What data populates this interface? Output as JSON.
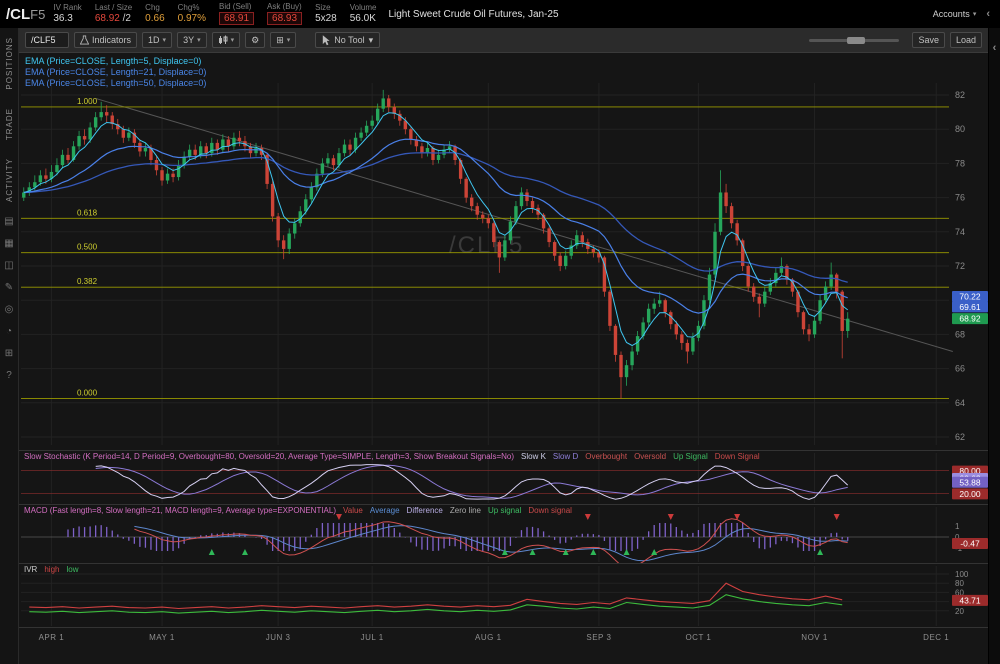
{
  "icons": {
    "caret": "▾",
    "chevron_left": "‹",
    "gear": "⚙",
    "grid": "⊞"
  },
  "header": {
    "symbol_main": "/CL",
    "symbol_suffix": "F5",
    "stats": [
      {
        "label": "IV Rank",
        "value": "36.3",
        "suffix": "",
        "cls": "white",
        "boxed": false
      },
      {
        "label": "Last / Size",
        "value": "68.92",
        "suffix": " /2",
        "cls": "red",
        "boxed": false
      },
      {
        "label": "Chg",
        "value": "0.66",
        "suffix": "",
        "cls": "orange",
        "boxed": false
      },
      {
        "label": "Chg%",
        "value": "0.97%",
        "suffix": "",
        "cls": "orange",
        "boxed": false
      },
      {
        "label": "Bid (Sell)",
        "value": "68.91",
        "suffix": "",
        "cls": "red",
        "boxed": true
      },
      {
        "label": "Ask (Buy)",
        "value": "68.93",
        "suffix": "",
        "cls": "red",
        "boxed": true
      },
      {
        "label": "Size",
        "value": "5x28",
        "suffix": "",
        "cls": "white",
        "boxed": false
      },
      {
        "label": "Volume",
        "value": "56.0K",
        "suffix": "",
        "cls": "white",
        "boxed": false
      }
    ],
    "description": "Light Sweet Crude Oil Futures, Jan-25",
    "accounts_label": "Accounts"
  },
  "sidebar": {
    "tabs": [
      "POSITIONS",
      "TRADE",
      "ACTIVITY"
    ],
    "icons": [
      {
        "name": "monitor-icon",
        "glyph": "▤"
      },
      {
        "name": "calendar-icon",
        "glyph": "▦"
      },
      {
        "name": "notes-icon",
        "glyph": "◫"
      },
      {
        "name": "edit-icon",
        "glyph": "✎"
      },
      {
        "name": "target-icon",
        "glyph": "◎"
      },
      {
        "name": "clock-icon",
        "glyph": "◔"
      },
      {
        "name": "apps-icon",
        "glyph": "⊞"
      },
      {
        "name": "help-icon",
        "glyph": "?"
      }
    ]
  },
  "toolbar": {
    "symbol_input": "/CLF5",
    "indicators_label": "Indicators",
    "aggregation": "1D",
    "range": "3Y",
    "tool_label": "No Tool",
    "save_label": "Save",
    "load_label": "Load"
  },
  "chart": {
    "watermark": "/CLF5",
    "ema_labels": [
      {
        "text": "EMA (Price=CLOSE, Length=5, Displace=0)",
        "color": "#3fc6f0"
      },
      {
        "text": "EMA (Price=CLOSE, Length=21, Displace=0)",
        "color": "#4a86e8"
      },
      {
        "text": "EMA (Price=CLOSE, Length=50, Displace=0)",
        "color": "#4a86e8"
      }
    ],
    "y_ticks": [
      82,
      80,
      78,
      76,
      74,
      72,
      70,
      68,
      66,
      64,
      62
    ],
    "fib_levels": [
      {
        "label": "1.000",
        "price": 81.3
      },
      {
        "label": "0.618",
        "price": 74.79
      },
      {
        "label": "0.500",
        "price": 72.78
      },
      {
        "label": "0.382",
        "price": 70.76
      },
      {
        "label": "0.000",
        "price": 64.25
      }
    ],
    "price_badges": [
      {
        "value": "70.22",
        "price": 70.22,
        "bg": "#3a5fc8"
      },
      {
        "value": "69.61",
        "price": 69.61,
        "bg": "#3a5fc8"
      },
      {
        "value": "68.92",
        "price": 68.92,
        "bg": "#1f9a50"
      }
    ],
    "trendline": {
      "i1": 13,
      "p1": 81.8,
      "i2": 168,
      "p2": 67.0
    },
    "colors": {
      "up": "#26a65b",
      "down": "#cc4437",
      "ema5": "#3fc6f0",
      "ema21": "#4a80e8",
      "ema50": "#3558b8"
    },
    "candles": [
      [
        76.0,
        76.6,
        75.8,
        76.3
      ],
      [
        76.3,
        76.9,
        76.1,
        76.6
      ],
      [
        76.6,
        77.3,
        76.4,
        76.9
      ],
      [
        76.9,
        77.6,
        76.7,
        77.3
      ],
      [
        77.3,
        77.7,
        76.8,
        77.1
      ],
      [
        77.1,
        77.9,
        76.9,
        77.5
      ],
      [
        77.5,
        78.3,
        77.3,
        77.9
      ],
      [
        77.9,
        78.8,
        77.7,
        78.5
      ],
      [
        78.5,
        78.9,
        78.0,
        78.2
      ],
      [
        78.2,
        79.3,
        78.1,
        79.0
      ],
      [
        79.0,
        79.9,
        78.8,
        79.6
      ],
      [
        79.6,
        80.0,
        79.1,
        79.4
      ],
      [
        79.4,
        80.4,
        79.2,
        80.1
      ],
      [
        80.1,
        81.0,
        79.9,
        80.7
      ],
      [
        80.7,
        81.6,
        80.5,
        81.0
      ],
      [
        81.0,
        81.4,
        80.4,
        80.8
      ],
      [
        80.8,
        81.0,
        80.0,
        80.3
      ],
      [
        80.3,
        80.6,
        79.7,
        80.0
      ],
      [
        80.0,
        80.2,
        79.2,
        79.5
      ],
      [
        79.5,
        80.1,
        79.3,
        79.8
      ],
      [
        79.8,
        80.0,
        78.9,
        79.2
      ],
      [
        79.2,
        79.4,
        78.4,
        78.7
      ],
      [
        78.7,
        79.2,
        78.4,
        78.9
      ],
      [
        78.9,
        79.1,
        77.9,
        78.2
      ],
      [
        78.2,
        78.4,
        77.3,
        77.6
      ],
      [
        77.6,
        77.8,
        76.7,
        77.0
      ],
      [
        77.0,
        77.7,
        76.8,
        77.4
      ],
      [
        77.4,
        77.7,
        76.9,
        77.2
      ],
      [
        77.2,
        78.2,
        77.0,
        77.9
      ],
      [
        77.9,
        78.7,
        77.7,
        78.4
      ],
      [
        78.4,
        79.1,
        78.2,
        78.8
      ],
      [
        78.8,
        79.1,
        78.2,
        78.5
      ],
      [
        78.5,
        79.3,
        78.3,
        79.0
      ],
      [
        79.0,
        79.2,
        78.3,
        78.6
      ],
      [
        78.6,
        79.5,
        78.4,
        79.2
      ],
      [
        79.2,
        79.4,
        78.5,
        78.8
      ],
      [
        78.8,
        79.7,
        78.6,
        79.4
      ],
      [
        79.4,
        79.6,
        78.7,
        79.0
      ],
      [
        79.0,
        79.8,
        78.8,
        79.5
      ],
      [
        79.5,
        79.9,
        79.0,
        79.3
      ],
      [
        79.3,
        79.6,
        78.7,
        79.0
      ],
      [
        79.0,
        79.2,
        78.3,
        78.6
      ],
      [
        78.6,
        79.2,
        78.4,
        78.9
      ],
      [
        78.9,
        79.1,
        78.2,
        78.5
      ],
      [
        78.5,
        78.6,
        76.5,
        76.8
      ],
      [
        76.8,
        77.0,
        74.6,
        74.9
      ],
      [
        74.9,
        75.1,
        73.1,
        73.5
      ],
      [
        73.5,
        73.8,
        72.4,
        73.0
      ],
      [
        73.0,
        74.2,
        72.7,
        73.9
      ],
      [
        73.9,
        74.8,
        73.6,
        74.5
      ],
      [
        74.5,
        75.5,
        74.3,
        75.2
      ],
      [
        75.2,
        76.2,
        75.0,
        75.9
      ],
      [
        75.9,
        76.9,
        75.7,
        76.6
      ],
      [
        76.6,
        77.7,
        76.4,
        77.4
      ],
      [
        77.4,
        78.3,
        77.2,
        78.0
      ],
      [
        78.0,
        78.6,
        77.8,
        78.3
      ],
      [
        78.3,
        78.5,
        77.6,
        77.9
      ],
      [
        77.9,
        78.9,
        77.7,
        78.6
      ],
      [
        78.6,
        79.4,
        78.4,
        79.1
      ],
      [
        79.1,
        79.4,
        78.5,
        78.8
      ],
      [
        78.8,
        79.8,
        78.6,
        79.5
      ],
      [
        79.5,
        80.1,
        79.3,
        79.8
      ],
      [
        79.8,
        80.5,
        79.6,
        80.2
      ],
      [
        80.2,
        80.8,
        80.0,
        80.5
      ],
      [
        80.5,
        81.5,
        80.3,
        81.2
      ],
      [
        81.2,
        82.3,
        81.0,
        81.8
      ],
      [
        81.8,
        82.0,
        81.0,
        81.3
      ],
      [
        81.3,
        81.5,
        80.6,
        80.9
      ],
      [
        80.9,
        81.1,
        80.2,
        80.5
      ],
      [
        80.5,
        80.7,
        79.7,
        80.0
      ],
      [
        80.0,
        80.1,
        79.1,
        79.4
      ],
      [
        79.4,
        79.6,
        78.7,
        79.0
      ],
      [
        79.0,
        79.2,
        78.3,
        78.6
      ],
      [
        78.6,
        79.2,
        78.4,
        78.9
      ],
      [
        78.9,
        79.0,
        77.9,
        78.2
      ],
      [
        78.2,
        78.8,
        78.0,
        78.5
      ],
      [
        78.5,
        79.1,
        78.3,
        78.8
      ],
      [
        78.8,
        79.3,
        78.6,
        79.0
      ],
      [
        79.0,
        79.1,
        77.9,
        78.2
      ],
      [
        78.2,
        78.3,
        76.8,
        77.1
      ],
      [
        77.1,
        77.2,
        75.7,
        76.0
      ],
      [
        76.0,
        76.2,
        75.2,
        75.5
      ],
      [
        75.5,
        75.7,
        74.7,
        75.0
      ],
      [
        75.0,
        75.2,
        74.5,
        74.8
      ],
      [
        74.8,
        75.0,
        74.2,
        74.5
      ],
      [
        74.5,
        74.6,
        73.1,
        73.4
      ],
      [
        73.4,
        73.5,
        71.6,
        72.5
      ],
      [
        72.5,
        73.8,
        72.3,
        73.5
      ],
      [
        73.5,
        74.9,
        73.3,
        74.6
      ],
      [
        74.6,
        75.8,
        74.4,
        75.5
      ],
      [
        75.5,
        76.6,
        75.3,
        76.3
      ],
      [
        76.3,
        76.5,
        75.5,
        75.8
      ],
      [
        75.8,
        76.0,
        75.1,
        75.4
      ],
      [
        75.4,
        75.6,
        74.7,
        75.0
      ],
      [
        75.0,
        75.1,
        73.9,
        74.2
      ],
      [
        74.2,
        74.3,
        73.1,
        73.4
      ],
      [
        73.4,
        73.5,
        72.3,
        72.6
      ],
      [
        72.6,
        72.8,
        71.7,
        72.0
      ],
      [
        72.0,
        72.9,
        71.8,
        72.6
      ],
      [
        72.6,
        73.5,
        72.4,
        73.2
      ],
      [
        73.2,
        74.1,
        73.0,
        73.8
      ],
      [
        73.8,
        74.0,
        73.1,
        73.4
      ],
      [
        73.4,
        73.6,
        72.7,
        73.0
      ],
      [
        73.0,
        73.2,
        72.5,
        72.8
      ],
      [
        72.8,
        73.0,
        72.2,
        72.5
      ],
      [
        72.5,
        72.6,
        70.2,
        70.5
      ],
      [
        70.5,
        70.6,
        68.2,
        68.5
      ],
      [
        68.5,
        68.6,
        66.4,
        66.8
      ],
      [
        66.8,
        67.0,
        64.25,
        65.5
      ],
      [
        65.5,
        66.5,
        65.0,
        66.2
      ],
      [
        66.2,
        67.3,
        65.9,
        67.0
      ],
      [
        67.0,
        68.2,
        66.8,
        67.9
      ],
      [
        67.9,
        69.0,
        67.7,
        68.7
      ],
      [
        68.7,
        69.8,
        68.5,
        69.5
      ],
      [
        69.5,
        70.1,
        69.2,
        69.8
      ],
      [
        69.8,
        70.5,
        69.6,
        70.0
      ],
      [
        70.0,
        70.1,
        69.0,
        69.3
      ],
      [
        69.3,
        69.4,
        68.3,
        68.6
      ],
      [
        68.6,
        68.8,
        67.7,
        68.0
      ],
      [
        68.0,
        68.2,
        67.1,
        67.5
      ],
      [
        67.5,
        67.7,
        66.3,
        67.0
      ],
      [
        67.0,
        68.1,
        66.8,
        67.8
      ],
      [
        67.8,
        68.8,
        67.6,
        68.5
      ],
      [
        68.5,
        70.3,
        68.3,
        70.0
      ],
      [
        70.0,
        71.9,
        69.8,
        71.5
      ],
      [
        71.5,
        74.5,
        71.3,
        74.0
      ],
      [
        74.0,
        77.6,
        73.8,
        76.3
      ],
      [
        76.3,
        76.8,
        75.1,
        75.5
      ],
      [
        75.5,
        75.7,
        74.2,
        74.5
      ],
      [
        74.5,
        74.7,
        73.2,
        73.5
      ],
      [
        73.5,
        73.6,
        71.7,
        72.0
      ],
      [
        72.0,
        72.1,
        70.5,
        70.8
      ],
      [
        70.8,
        71.0,
        69.9,
        70.2
      ],
      [
        70.2,
        70.4,
        69.0,
        69.8
      ],
      [
        69.8,
        70.8,
        69.6,
        70.5
      ],
      [
        70.5,
        71.3,
        70.3,
        71.0
      ],
      [
        71.0,
        71.9,
        70.8,
        71.6
      ],
      [
        71.6,
        72.5,
        71.4,
        72.0
      ],
      [
        72.0,
        72.1,
        70.9,
        71.2
      ],
      [
        71.2,
        71.3,
        70.2,
        70.5
      ],
      [
        70.5,
        70.6,
        69.0,
        69.3
      ],
      [
        69.3,
        69.4,
        68.0,
        68.3
      ],
      [
        68.3,
        68.6,
        67.6,
        68.0
      ],
      [
        68.0,
        69.1,
        67.8,
        68.8
      ],
      [
        68.8,
        70.3,
        68.6,
        70.0
      ],
      [
        70.0,
        71.1,
        69.8,
        70.8
      ],
      [
        70.8,
        72.2,
        70.6,
        71.5
      ],
      [
        71.5,
        71.6,
        70.1,
        70.5
      ],
      [
        70.5,
        70.6,
        66.6,
        68.2
      ],
      [
        68.2,
        69.3,
        67.8,
        68.92
      ]
    ]
  },
  "stoch": {
    "params": {
      "text": "Slow Stochastic (K Period=14, D Period=9, Overbought=80, Oversold=20, Average Type=SIMPLE, Length=3, Show Breakout Signals=No)",
      "color": "#d36ec1"
    },
    "items": [
      {
        "text": "Slow K",
        "color": "#cfcfe8"
      },
      {
        "text": "Slow D",
        "color": "#8f7fd8"
      },
      {
        "text": "Overbought",
        "color": "#c95252"
      },
      {
        "text": "Oversold",
        "color": "#c95252"
      },
      {
        "text": "Up Signal",
        "color": "#3dbb62"
      },
      {
        "text": "Down Signal",
        "color": "#c94a4a"
      }
    ],
    "overbought": 80,
    "oversold": 20,
    "badges": [
      {
        "value": "80.00",
        "price": 80,
        "bg": "#9c2b2b"
      },
      {
        "value": "60.62",
        "price": 60.62,
        "bg": "#9b8ce0"
      },
      {
        "value": "53.88",
        "price": 50.5,
        "bg": "#7361c4"
      },
      {
        "value": "20.00",
        "price": 20,
        "bg": "#9c2b2b"
      }
    ]
  },
  "macd": {
    "params": {
      "text": "MACD (Fast length=8, Slow length=21, MACD length=9, Average type=EXPONENTIAL)",
      "color": "#d36ec1"
    },
    "items": [
      {
        "text": "Value",
        "color": "#c94a4a"
      },
      {
        "text": "Average",
        "color": "#5b8fd6"
      },
      {
        "text": "Difference",
        "color": "#b9aee4"
      },
      {
        "text": "Zero line",
        "color": "#aaaaaa"
      },
      {
        "text": "Up signal",
        "color": "#3dbb62"
      },
      {
        "text": "Down signal",
        "color": "#c94a4a"
      }
    ],
    "y_ticks": [
      1,
      0,
      -1
    ],
    "badge": {
      "value": "-0.47",
      "bg": "#9c2b2b"
    },
    "up_signals": [
      34,
      40,
      87,
      92,
      98,
      103,
      109,
      114,
      144
    ],
    "down_signals": [
      57,
      102,
      117,
      129,
      147
    ]
  },
  "ivr": {
    "items": [
      {
        "text": "IVR",
        "color": "#cccccc"
      },
      {
        "text": "high",
        "color": "#cc4444"
      },
      {
        "text": "low",
        "color": "#3dbb62"
      }
    ],
    "y_ticks": [
      100,
      80,
      60,
      40,
      20
    ],
    "badge": {
      "value": "43.71",
      "price": 43.71,
      "bg": "#9c2b2b"
    },
    "high": [
      28,
      27,
      29,
      26,
      28,
      30,
      27,
      26,
      28,
      25,
      27,
      29,
      26,
      28,
      31,
      29,
      27,
      30,
      28,
      26,
      29,
      31,
      28,
      30,
      33,
      30,
      28,
      31,
      29,
      32,
      45,
      40,
      36,
      34,
      38,
      35,
      48,
      44,
      40,
      38,
      36,
      42,
      80,
      62,
      55,
      50,
      46,
      44,
      52,
      44
    ],
    "low": [
      18,
      17,
      19,
      16,
      18,
      20,
      17,
      16,
      18,
      15,
      17,
      19,
      16,
      18,
      21,
      19,
      17,
      20,
      18,
      16,
      19,
      21,
      18,
      20,
      23,
      20,
      18,
      21,
      19,
      22,
      33,
      30,
      26,
      24,
      28,
      25,
      38,
      34,
      30,
      28,
      26,
      32,
      55,
      46,
      40,
      36,
      33,
      31,
      38,
      33
    ]
  },
  "time_axis": {
    "ticks": [
      {
        "label": "APR 1",
        "idx": 5
      },
      {
        "label": "MAY 1",
        "idx": 25
      },
      {
        "label": "JUN 3",
        "idx": 46
      },
      {
        "label": "JUL 1",
        "idx": 63
      },
      {
        "label": "AUG 1",
        "idx": 84
      },
      {
        "label": "SEP 3",
        "idx": 104
      },
      {
        "label": "OCT 1",
        "idx": 122
      },
      {
        "label": "NOV 1",
        "idx": 143
      },
      {
        "label": "DEC 1",
        "idx": 165
      }
    ]
  }
}
